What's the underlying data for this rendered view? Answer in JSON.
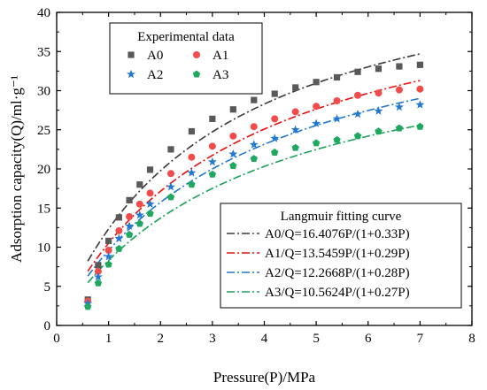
{
  "chart_data": {
    "type": "scatter",
    "xlabel": "Pressure(P)/MPa",
    "ylabel": "Adsorption capacity(Q)/ml·g⁻¹",
    "xlim": [
      0,
      8
    ],
    "ylim": [
      0,
      40
    ],
    "xticks": [
      "0",
      "1",
      "2",
      "3",
      "4",
      "5",
      "6",
      "7",
      "8"
    ],
    "yticks": [
      "0",
      "5",
      "10",
      "15",
      "20",
      "25",
      "30",
      "35",
      "40"
    ],
    "grid": false,
    "legend_experimental": {
      "title": "Experimental data",
      "placement": "top-left"
    },
    "legend_fitting": {
      "title": "Langmuir fitting curve",
      "placement": "bottom-right"
    },
    "x": [
      0.6,
      0.8,
      1.0,
      1.2,
      1.4,
      1.6,
      1.8,
      2.2,
      2.6,
      3.0,
      3.4,
      3.8,
      4.2,
      4.6,
      5.0,
      5.4,
      5.8,
      6.2,
      6.6,
      7.0
    ],
    "series": [
      {
        "name": "A0",
        "marker": "square",
        "color": "#595959",
        "values": [
          3.3,
          7.7,
          10.8,
          13.8,
          16.0,
          18.0,
          19.9,
          22.5,
          24.8,
          26.4,
          27.6,
          28.8,
          29.6,
          30.4,
          31.1,
          31.7,
          32.4,
          32.8,
          33.1,
          33.3
        ]
      },
      {
        "name": "A1",
        "marker": "circle",
        "color": "#f24b4b",
        "values": [
          3.1,
          6.9,
          9.6,
          12.1,
          13.9,
          15.5,
          16.9,
          19.4,
          21.5,
          22.9,
          24.2,
          25.4,
          26.4,
          27.3,
          28.0,
          28.7,
          29.4,
          29.7,
          30.1,
          30.2
        ]
      },
      {
        "name": "A2",
        "marker": "star",
        "color": "#2378d2",
        "values": [
          2.8,
          6.2,
          8.8,
          11.1,
          12.7,
          14.1,
          15.5,
          17.7,
          19.5,
          20.9,
          21.9,
          23.1,
          23.9,
          25.0,
          25.8,
          26.4,
          27.0,
          27.4,
          27.9,
          28.2
        ]
      },
      {
        "name": "A3",
        "marker": "pentagon",
        "color": "#1fa860",
        "values": [
          2.4,
          5.4,
          7.8,
          9.8,
          11.6,
          13.0,
          14.3,
          16.4,
          18.0,
          19.3,
          20.4,
          21.3,
          22.1,
          22.7,
          23.3,
          23.7,
          24.2,
          24.8,
          25.2,
          25.4
        ]
      }
    ],
    "fits": [
      {
        "label": "A0/Q=16.4076P/(1+0.33P)",
        "a": 16.4076,
        "b": 0.33,
        "color": "#3a3a3a",
        "dash": "9,3,2,3",
        "xrange": [
          0.6,
          7.0
        ]
      },
      {
        "label": "A1/Q=13.5459P/(1+0.29P)",
        "a": 13.5459,
        "b": 0.29,
        "color": "#e8100c",
        "dash": "9,3,2,3",
        "xrange": [
          0.6,
          7.0
        ]
      },
      {
        "label": "A2/Q=12.2668P/(1+0.28P)",
        "a": 12.2668,
        "b": 0.28,
        "color": "#1f78d0",
        "dash": "9,3,2,3",
        "xrange": [
          0.6,
          7.0
        ]
      },
      {
        "label": "A3/Q=10.5624P/(1+0.27P)",
        "a": 10.5624,
        "b": 0.27,
        "color": "#1aa05a",
        "dash": "9,3,2,3",
        "xrange": [
          0.6,
          7.0
        ]
      }
    ]
  }
}
